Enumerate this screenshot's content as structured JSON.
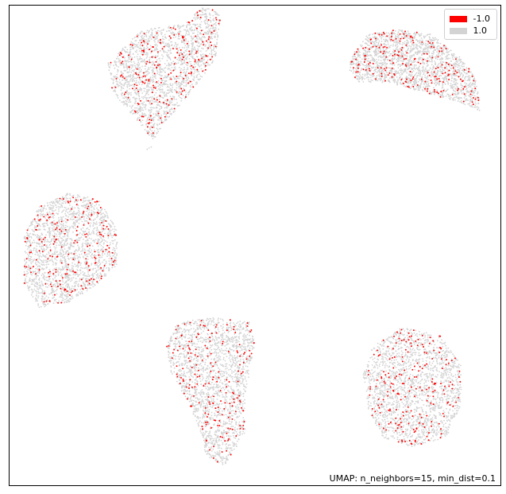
{
  "chart_data": {
    "type": "scatter",
    "title": "",
    "xlabel": "",
    "ylabel": "",
    "grid": false,
    "legend_position": "top-right",
    "annotation": "UMAP: n_neighbors=15, min_dist=0.1",
    "xlim": [
      0,
      100
    ],
    "ylim": [
      0,
      100
    ],
    "series": [
      {
        "name": "-1.0",
        "color": "#ff0000"
      },
      {
        "name": "1.0",
        "color": "#d3d3d3"
      }
    ],
    "clusters": [
      {
        "id": "upper-left-elongated",
        "center": [
          33,
          82
        ],
        "approx_points": 2100,
        "label_minus1_fraction": 0.09
      },
      {
        "id": "upper-right",
        "center": [
          81,
          86
        ],
        "approx_points": 2100,
        "label_minus1_fraction": 0.09
      },
      {
        "id": "middle-left",
        "center": [
          13,
          49
        ],
        "approx_points": 2100,
        "label_minus1_fraction": 0.09
      },
      {
        "id": "bottom-center",
        "center": [
          42,
          21
        ],
        "approx_points": 2100,
        "label_minus1_fraction": 0.09
      },
      {
        "id": "bottom-right",
        "center": [
          82,
          20
        ],
        "approx_points": 2100,
        "label_minus1_fraction": 0.09
      }
    ]
  }
}
